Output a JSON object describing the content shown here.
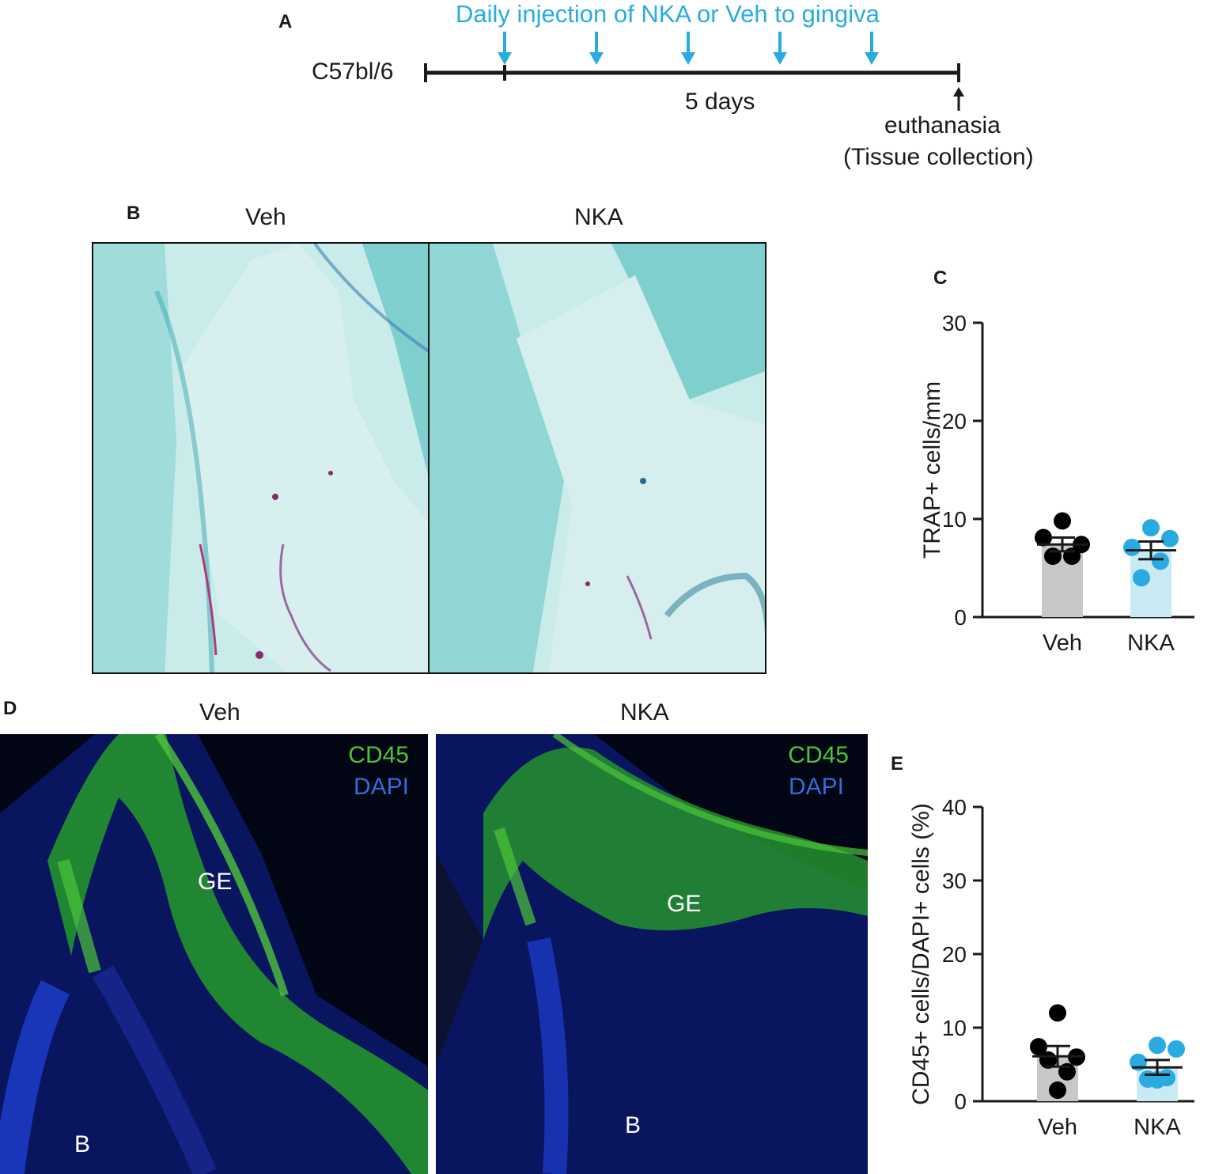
{
  "panels": {
    "a": "A",
    "b": "B",
    "c": "C",
    "d": "D",
    "e": "E"
  },
  "timeline": {
    "injection_label": "Daily injection of NKA or Veh to gingiva",
    "strain": "C57bl/6",
    "duration": "5 days",
    "end_label_1": "euthanasia",
    "end_label_2": "(Tissue collection)",
    "injection_count": 5,
    "colors": {
      "injection": "#29abe2",
      "line": "#1a1a1a"
    }
  },
  "histology": {
    "veh_title": "Veh",
    "nka_title": "NKA"
  },
  "immunofluorescence": {
    "veh_title": "Veh",
    "nka_title": "NKA",
    "marker_1": "CD45",
    "marker_2": "DAPI",
    "region_ge": "GE",
    "region_b": "B",
    "colors": {
      "cd45": "#4cc43a",
      "dapi": "#2f6fd6"
    }
  },
  "chart_data": [
    {
      "type": "bar",
      "panel": "C",
      "categories": [
        "Veh",
        "NKA"
      ],
      "values": [
        7.4,
        6.8
      ],
      "sem": [
        0.7,
        0.9
      ],
      "points": [
        [
          9.8,
          8.1,
          7.4,
          6.2,
          6.2
        ],
        [
          9.1,
          8.0,
          7.1,
          5.7,
          4.0
        ]
      ],
      "ylabel": "TRAP+ cells/mm",
      "ylim": [
        0,
        30
      ],
      "yticks": [
        0,
        10,
        20,
        30
      ],
      "colors": {
        "bar_veh": "#c8c8c8",
        "bar_nka": "#c9e9f3",
        "point_veh": "#000000",
        "point_nka": "#29abe2"
      }
    },
    {
      "type": "bar",
      "panel": "E",
      "categories": [
        "Veh",
        "NKA"
      ],
      "values": [
        6.1,
        4.6
      ],
      "sem": [
        1.4,
        1.0
      ],
      "points": [
        [
          12.0,
          7.4,
          6.0,
          5.6,
          4.0,
          1.5
        ],
        [
          7.6,
          7.1,
          5.3,
          3.2,
          3.0,
          2.9
        ]
      ],
      "ylabel": "CD45+ cells/DAPI+ cells (%)",
      "ylim": [
        0,
        40
      ],
      "yticks": [
        0,
        10,
        20,
        30,
        40
      ],
      "colors": {
        "bar_veh": "#c8c8c8",
        "bar_nka": "#c9e9f3",
        "point_veh": "#000000",
        "point_nka": "#29abe2"
      }
    }
  ]
}
